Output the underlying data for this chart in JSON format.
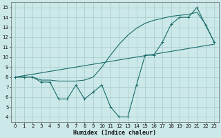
{
  "xlabel": "Humidex (Indice chaleur)",
  "bg_color": "#cce8e8",
  "grid_color": "#aacfcf",
  "line_color": "#1a6b6b",
  "xlim": [
    -0.5,
    23.5
  ],
  "ylim": [
    3.5,
    15.5
  ],
  "xticks": [
    0,
    1,
    2,
    3,
    4,
    5,
    6,
    7,
    8,
    9,
    10,
    11,
    12,
    13,
    14,
    15,
    16,
    17,
    18,
    19,
    20,
    21,
    22,
    23
  ],
  "yticks": [
    4,
    5,
    6,
    7,
    8,
    9,
    10,
    11,
    12,
    13,
    14,
    15
  ],
  "zigzag_x": [
    0,
    1,
    2,
    3,
    4,
    5,
    6,
    7,
    8,
    9,
    10,
    11,
    12,
    13,
    14,
    15,
    16,
    17,
    18,
    19,
    20,
    21,
    22,
    23
  ],
  "zigzag_y": [
    8.0,
    8.0,
    8.0,
    7.5,
    7.5,
    5.8,
    5.8,
    7.2,
    5.8,
    6.5,
    7.2,
    5.0,
    4.0,
    4.0,
    7.2,
    10.2,
    10.2,
    11.5,
    13.3,
    14.0,
    14.0,
    15.0,
    13.2,
    11.5
  ],
  "smooth_x": [
    0,
    1,
    2,
    3,
    4,
    5,
    6,
    7,
    8,
    9,
    10,
    11,
    12,
    13,
    14,
    15,
    16,
    17,
    18,
    19,
    20,
    21,
    22,
    23
  ],
  "smooth_y": [
    8.0,
    8.0,
    8.0,
    7.7,
    7.7,
    7.6,
    7.6,
    7.6,
    7.7,
    8.0,
    9.0,
    10.2,
    11.3,
    12.2,
    12.9,
    13.4,
    13.7,
    13.9,
    14.1,
    14.2,
    14.3,
    14.5,
    13.3,
    11.5
  ],
  "trend_x": [
    0,
    23
  ],
  "trend_y": [
    8.0,
    11.3
  ],
  "xlabel_fontsize": 6.0,
  "tick_fontsize": 5.0
}
